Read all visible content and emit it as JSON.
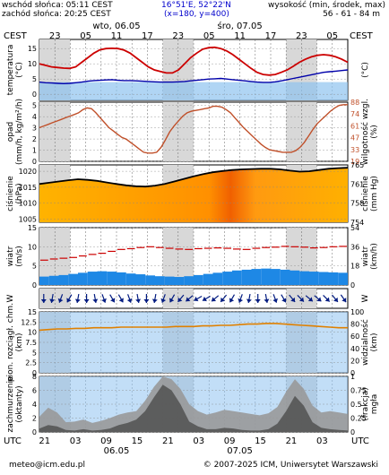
{
  "header": {
    "sunrise": "wschód słońca: 05:11 CEST",
    "sunset": "zachód słońca: 20:25 CEST",
    "coords": "16°51'E, 52°22'N",
    "grid": "(x=180, y=400)",
    "height_label": "wysokość (min, środek, max)",
    "height_values": "56 - 61 - 84 m"
  },
  "footer": {
    "email": "meteo@icm.edu.pl",
    "copyright": "© 2007-2025 ICM, Uniwersytet Warszawski"
  },
  "colors": {
    "temp": "#cc0000",
    "dew": "#0000aa",
    "humidity": "#c0502a",
    "pressure": "#000000",
    "night": "#d8d8d8",
    "windbar": "#1e88e5",
    "cloud_low": "#555555",
    "cloud_mid": "#999999"
  },
  "chart_data": {
    "type": "meteogram",
    "top_axis": {
      "tz": "CEST",
      "hours": [
        "23",
        "05",
        "11",
        "17",
        "23",
        "05",
        "11",
        "17",
        "23",
        "05"
      ],
      "days": [
        {
          "label": "wto, 06.05",
          "hour_index": 2
        },
        {
          "label": "śro, 07.05",
          "hour_index": 6
        }
      ]
    },
    "bottom_axis": {
      "tz": "UTC",
      "hours": [
        "21",
        "03",
        "09",
        "15",
        "21",
        "03",
        "09",
        "15",
        "21",
        "03"
      ],
      "days": [
        {
          "label": "06.05",
          "hour_index": 2
        },
        {
          "label": "07.05",
          "hour_index": 6
        }
      ]
    },
    "hours_span": 60,
    "panels": [
      {
        "id": "temperature",
        "type": "line",
        "ylabel": "temperatura\n(°C)",
        "ylabel_right": "(°C)",
        "yticks": [
          0,
          5,
          10,
          15
        ],
        "ylim": [
          -2,
          18
        ],
        "series": [
          {
            "key": "temp",
            "values": [
              10,
              9.5,
              9,
              8.8,
              8.6,
              8.5,
              9,
              10.5,
              12,
              13.5,
              14.6,
              15,
              15.1,
              15,
              14.5,
              13.5,
              12,
              10.5,
              9,
              8,
              7.5,
              7,
              7,
              8,
              10,
              12,
              13.5,
              14.8,
              15.3,
              15.4,
              15,
              14.2,
              13,
              11.5,
              10,
              8.5,
              7.2,
              6.5,
              6.3,
              6.5,
              7.2,
              8,
              9.2,
              10.5,
              11.5,
              12.3,
              12.8,
              13,
              12.8,
              12.3,
              11.5,
              10.5
            ]
          },
          {
            "key": "dew",
            "values": [
              4,
              3.8,
              3.7,
              3.6,
              3.5,
              3.6,
              3.8,
              4,
              4.3,
              4.5,
              4.6,
              4.7,
              4.8,
              4.6,
              4.5,
              4.5,
              4.4,
              4.3,
              4.2,
              4.1,
              4,
              4,
              4,
              4.1,
              4.2,
              4.4,
              4.6,
              4.8,
              5,
              5.1,
              5.2,
              5,
              4.8,
              4.6,
              4.4,
              4.2,
              4,
              3.9,
              3.9,
              4.1,
              4.4,
              4.8,
              5.2,
              5.6,
              6,
              6.4,
              6.8,
              7.2,
              7.4,
              7.6,
              7.8,
              8
            ]
          }
        ]
      },
      {
        "id": "precipitation",
        "type": "line",
        "ylabel": "opad\n(mm/h, kg/m²/h)",
        "ylabel_right": "wilgotność wzgl.\n(%)",
        "yticks": [
          0,
          1,
          2,
          3,
          4,
          5
        ],
        "ylim": [
          0,
          5.3
        ],
        "yticks_right": [
          19,
          33,
          47,
          61,
          74,
          88
        ],
        "ylim_right": [
          19,
          91
        ],
        "series": [
          {
            "key": "humidity",
            "values": [
              60,
              62,
              64,
              66,
              68,
              70,
              72,
              74,
              76,
              78,
              82,
              84,
              83,
              78,
              72,
              66,
              60,
              56,
              52,
              48,
              46,
              42,
              38,
              34,
              30,
              29,
              29,
              30,
              36,
              45,
              55,
              62,
              68,
              74,
              78,
              80,
              81,
              82,
              83,
              84,
              86,
              86,
              85,
              82,
              78,
              72,
              66,
              60,
              55,
              50,
              45,
              40,
              36,
              33,
              32,
              31,
              30,
              30,
              30,
              32,
              36,
              42,
              50,
              58,
              65,
              70,
              75,
              80,
              84,
              87,
              88,
              88
            ]
          }
        ]
      },
      {
        "id": "pressure",
        "type": "area",
        "ylabel": "ciśnienie\n(hPa)",
        "ylabel_right": "ciśnienie\n(mm Hg)",
        "yticks": [
          1005,
          1010,
          1015,
          1020
        ],
        "ylim": [
          1004,
          1022
        ],
        "yticks_right": [
          754,
          758,
          761,
          765
        ],
        "series": [
          {
            "key": "pressure",
            "values": [
              1016,
              1016.4,
              1016.8,
              1017.2,
              1017.5,
              1017.3,
              1017,
              1016.5,
              1016,
              1015.6,
              1015.3,
              1015.2,
              1015.5,
              1016,
              1016.8,
              1017.6,
              1018.4,
              1019.1,
              1019.7,
              1020.1,
              1020.4,
              1020.6,
              1020.7,
              1020.8,
              1020.8,
              1020.6,
              1020.2,
              1019.9,
              1020.0,
              1020.4,
              1020.8,
              1021.0,
              1021.1
            ]
          }
        ]
      },
      {
        "id": "wind",
        "type": "bar",
        "ylabel": "wiatr\n(m/s)",
        "ylabel_right": "wiatr\n(km/h)",
        "yticks": [
          0,
          5,
          10,
          15
        ],
        "ylim": [
          0,
          15
        ],
        "yticks_right": [
          0,
          18,
          36,
          54
        ],
        "series": [
          {
            "key": "speed",
            "values": [
              2.2,
              2.4,
              2.6,
              2.9,
              3.2,
              3.5,
              3.6,
              3.5,
              3.3,
              3.0,
              2.8,
              2.5,
              2.3,
              2.2,
              2.1,
              2.3,
              2.6,
              2.9,
              3.2,
              3.5,
              3.8,
              4.0,
              4.2,
              4.3,
              4.2,
              4.0,
              3.8,
              3.6,
              3.5,
              3.4,
              3.3,
              3.2
            ]
          },
          {
            "key": "gust",
            "values": [
              6.5,
              6.8,
              7.0,
              7.2,
              7.6,
              8.0,
              8.3,
              8.8,
              9.3,
              9.5,
              9.8,
              10.0,
              9.8,
              9.6,
              9.4,
              9.3,
              9.5,
              9.6,
              9.7,
              9.6,
              9.4,
              9.3,
              9.6,
              9.8,
              9.9,
              10.1,
              10.0,
              9.9,
              9.7,
              9.8,
              10.0,
              10.1
            ]
          }
        ]
      },
      {
        "id": "wind_dir",
        "type": "scatter",
        "ylabel": "W",
        "ylabel_right": "W",
        "series": [
          {
            "key": "direction_deg",
            "values": [
              90,
              100,
              110,
              120,
              100,
              90,
              80,
              70,
              60,
              60,
              70,
              80,
              90,
              100,
              110,
              120,
              130,
              140,
              150,
              150,
              140,
              130,
              120,
              110,
              100,
              90,
              80,
              70,
              60,
              50,
              45,
              40,
              40,
              45,
              50,
              55
            ]
          }
        ]
      },
      {
        "id": "cloudbase",
        "type": "line",
        "ylabel": "pion. rozciągł. chm.\n(km)",
        "ylabel_right": "widzialność\n(km)",
        "yticks": [
          0,
          2.5,
          5,
          7.5,
          10,
          12.5,
          15
        ],
        "ylim": [
          0,
          15
        ],
        "yticks_right": [
          0,
          20,
          40,
          60,
          80,
          100
        ],
        "series": [
          {
            "key": "visibility",
            "values": [
              70,
              71,
              72,
              72,
              73,
              73,
              74,
              74,
              74,
              75,
              75,
              75,
              75,
              75,
              75,
              76,
              76,
              76,
              77,
              77,
              78,
              78,
              79,
              80,
              80,
              81,
              81,
              80,
              79,
              78,
              77,
              76,
              75,
              74,
              74
            ]
          }
        ]
      },
      {
        "id": "cloudcover",
        "type": "area",
        "ylabel": "zachmurzenie\n(oktanty)",
        "ylabel_right": "(frakcja)\nmgła",
        "yticks": [
          0,
          2,
          4,
          6,
          8
        ],
        "ylim": [
          0,
          8
        ],
        "yticks_right": [
          0,
          0.25,
          0.5,
          0.75,
          1
        ],
        "series": [
          {
            "key": "total",
            "values": [
              2.2,
              3.5,
              2.8,
              1.4,
              1.5,
              1.8,
              1.3,
              1.6,
              2.0,
              2.5,
              2.8,
              3.0,
              4.5,
              6.5,
              8,
              7.6,
              6.2,
              4.0,
              3.0,
              2.5,
              2.8,
              3.2,
              3.0,
              2.8,
              2.6,
              2.4,
              2.7,
              3.6,
              5.8,
              7.6,
              6.2,
              3.8,
              2.8,
              3.0,
              2.8,
              2.6
            ]
          },
          {
            "key": "low",
            "values": [
              0.5,
              1.0,
              0.8,
              0.3,
              0.2,
              0.4,
              0.2,
              0.3,
              0.5,
              1.0,
              1.3,
              1.8,
              3.0,
              5.0,
              6.8,
              6.0,
              4.0,
              1.5,
              0.8,
              0.4,
              0.4,
              0.6,
              0.5,
              0.3,
              0.2,
              0.2,
              0.4,
              1.2,
              3.0,
              5.2,
              3.8,
              1.4,
              0.6,
              0.4,
              0.3,
              0.2
            ]
          }
        ]
      }
    ]
  }
}
